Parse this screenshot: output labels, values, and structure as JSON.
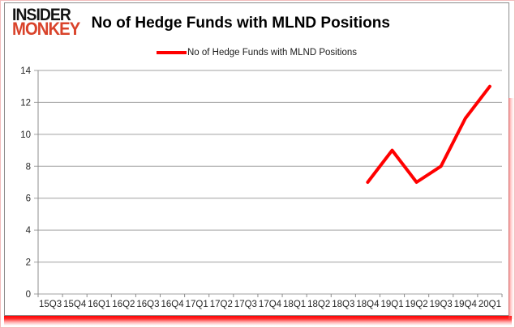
{
  "logo": {
    "line1": "INSIDER",
    "line2": "MONKEY",
    "color1": "#141414",
    "color2": "#d9432b"
  },
  "title": "No of Hedge Funds with MLND Positions",
  "legend": {
    "label": "No of Hedge Funds with MLND Positions",
    "color": "#ff0000"
  },
  "colors": {
    "series_red": "#ff0000",
    "gridline": "#a0a0a0",
    "axis": "#8c8c8c",
    "tick_text": "#262626",
    "frame_glow": "#ff0000"
  },
  "chart_data": {
    "type": "line",
    "title": "No of Hedge Funds with MLND Positions",
    "categories": [
      "15Q3",
      "15Q4",
      "16Q1",
      "16Q2",
      "16Q3",
      "16Q4",
      "17Q1",
      "17Q2",
      "17Q3",
      "17Q4",
      "18Q1",
      "18Q2",
      "18Q3",
      "18Q4",
      "19Q1",
      "19Q2",
      "19Q3",
      "19Q4",
      "20Q1"
    ],
    "series": [
      {
        "name": "No of Hedge Funds with MLND Positions",
        "color": "#ff0000",
        "values": [
          null,
          null,
          null,
          null,
          null,
          null,
          null,
          null,
          null,
          null,
          null,
          null,
          null,
          7,
          9,
          7,
          8,
          11,
          13
        ]
      }
    ],
    "xlabel": "",
    "ylabel": "",
    "ylim": [
      0,
      14
    ],
    "ytick_step": 2,
    "grid": true,
    "legend_position": "top-center"
  }
}
